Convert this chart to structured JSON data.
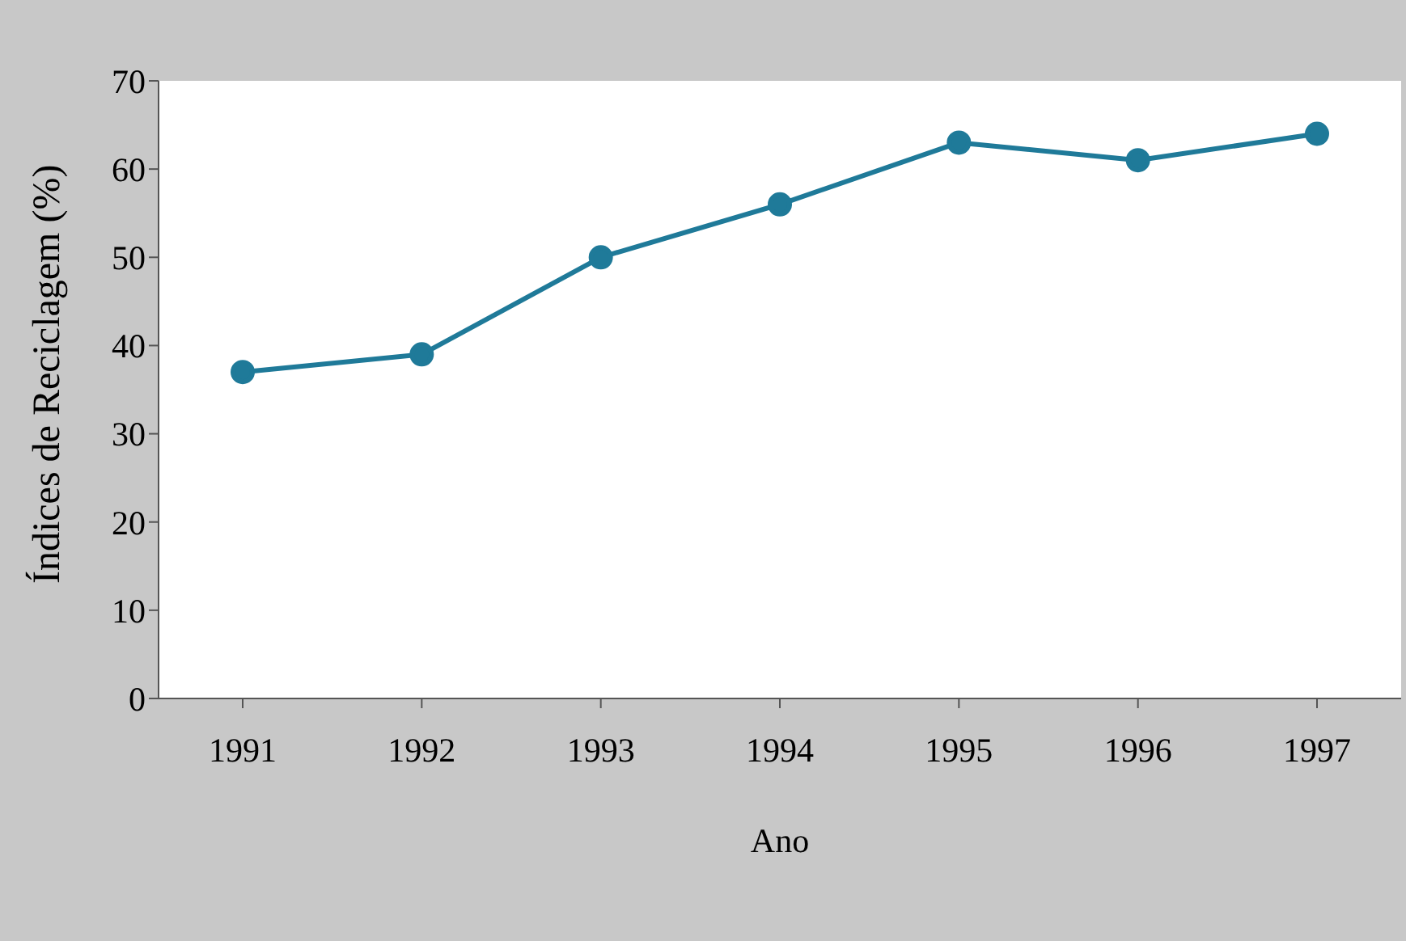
{
  "chart_data": {
    "type": "line",
    "xlabel": "Ano",
    "ylabel": "Índices de Reciclagem (%)",
    "categories": [
      "1991",
      "1992",
      "1993",
      "1994",
      "1995",
      "1996",
      "1997"
    ],
    "series": [
      {
        "color": "#1f7a99",
        "values": [
          37,
          39,
          50,
          56,
          63,
          61,
          64
        ]
      }
    ],
    "ylim": [
      0,
      70
    ],
    "yticks": [
      0,
      10,
      20,
      30,
      40,
      50,
      60,
      70
    ],
    "grid": false,
    "legend": false,
    "marker": "circle",
    "line_style": "solid"
  }
}
